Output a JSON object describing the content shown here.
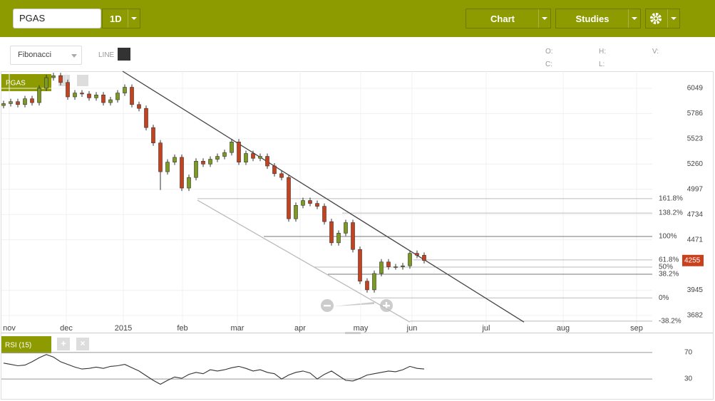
{
  "toolbar": {
    "symbol": "PGAS",
    "interval": "1D",
    "chart": "Chart",
    "studies": "Studies",
    "drawing_tool": "Fibonacci",
    "line_label": "LINE",
    "ohlc_labels": [
      "O:",
      "H:",
      "V:",
      "C:",
      "L:"
    ]
  },
  "chart_data": [
    {
      "type": "candlestick",
      "name": "PGAS",
      "up_color": "#7b9a1e",
      "down_color": "#c8401c",
      "x": [
        0,
        1,
        2,
        3,
        4,
        5,
        6,
        7,
        8,
        9,
        10,
        11,
        12,
        13,
        14,
        15,
        16,
        17,
        18,
        19,
        20,
        21,
        22,
        23,
        24,
        25,
        26,
        27,
        28,
        29,
        30,
        31,
        32,
        33,
        34,
        35,
        36,
        37,
        38,
        39,
        40,
        41,
        42,
        43,
        44,
        45,
        46,
        47,
        48,
        49,
        50,
        51,
        52,
        53,
        54,
        55,
        56,
        57,
        58,
        59
      ],
      "open": [
        5870,
        5890,
        5910,
        5880,
        5940,
        5900,
        6050,
        6160,
        6180,
        6110,
        5960,
        6000,
        5990,
        5950,
        5980,
        5900,
        5930,
        6000,
        6060,
        5880,
        5840,
        5640,
        5480,
        5180,
        5280,
        5330,
        5010,
        5120,
        5290,
        5260,
        5310,
        5340,
        5380,
        5490,
        5280,
        5370,
        5320,
        5340,
        5240,
        5160,
        5120,
        4690,
        4830,
        4880,
        4850,
        4820,
        4660,
        4440,
        4540,
        4650,
        4370,
        4040,
        3950,
        4120,
        4240,
        4190,
        4190,
        4200,
        4330,
        4310
      ],
      "high": [
        5920,
        5940,
        5940,
        5970,
        5970,
        6080,
        6190,
        6210,
        6210,
        6140,
        6030,
        6030,
        6020,
        6010,
        6010,
        5960,
        6030,
        6090,
        6090,
        5910,
        5870,
        5670,
        5510,
        5310,
        5360,
        5360,
        5150,
        5320,
        5320,
        5340,
        5370,
        5410,
        5520,
        5520,
        5400,
        5400,
        5370,
        5370,
        5270,
        5190,
        5150,
        4860,
        4910,
        4910,
        4880,
        4850,
        4690,
        4570,
        4680,
        4680,
        4400,
        4070,
        4150,
        4270,
        4270,
        4220,
        4230,
        4360,
        4360,
        4340
      ],
      "low": [
        5840,
        5860,
        5850,
        5850,
        5870,
        5870,
        6020,
        6130,
        6080,
        5930,
        5930,
        5960,
        5920,
        5920,
        5870,
        5870,
        5900,
        5970,
        5850,
        5810,
        5610,
        5450,
        4990,
        5150,
        5250,
        4980,
        4980,
        5090,
        5230,
        5230,
        5280,
        5310,
        5350,
        5250,
        5250,
        5290,
        5290,
        5210,
        5130,
        5090,
        4660,
        4660,
        4800,
        4820,
        4790,
        4630,
        4410,
        4410,
        4510,
        4340,
        4010,
        3920,
        3920,
        4090,
        4160,
        4160,
        4160,
        4170,
        4280,
        4225
      ],
      "close": [
        5890,
        5910,
        5880,
        5940,
        5900,
        6050,
        6160,
        6180,
        6110,
        5960,
        6000,
        5990,
        5950,
        5980,
        5900,
        5930,
        6000,
        6060,
        5880,
        5840,
        5640,
        5480,
        5180,
        5280,
        5330,
        5010,
        5120,
        5290,
        5260,
        5310,
        5340,
        5380,
        5490,
        5280,
        5370,
        5320,
        5340,
        5240,
        5160,
        5120,
        4690,
        4830,
        4880,
        4850,
        4820,
        4660,
        4440,
        4540,
        4650,
        4370,
        4040,
        3950,
        4120,
        4240,
        4190,
        4190,
        4200,
        4330,
        4310,
        4255
      ],
      "xlim": [
        -0.3,
        91
      ],
      "xticks": [
        {
          "value": 0.8,
          "label": "nov"
        },
        {
          "value": 8.8,
          "label": "dec"
        },
        {
          "value": 16.8,
          "label": "2015"
        },
        {
          "value": 25.1,
          "label": "feb"
        },
        {
          "value": 32.8,
          "label": "mar"
        },
        {
          "value": 41.6,
          "label": "apr"
        },
        {
          "value": 50.1,
          "label": "may"
        },
        {
          "value": 57.3,
          "label": "jun"
        },
        {
          "value": 67.7,
          "label": "jul"
        },
        {
          "value": 78.5,
          "label": "aug"
        },
        {
          "value": 88.8,
          "label": "sep"
        }
      ],
      "ylim": [
        3504,
        6227
      ],
      "yticks": [
        6049,
        5786,
        5523,
        5260,
        4997,
        4734,
        4471,
        3945,
        3682
      ],
      "grid": true,
      "trendlines": [
        {
          "x": [
            16.7,
            73
          ],
          "y": [
            6227,
            3614
          ],
          "color": "#444"
        },
        {
          "x": [
            27.2,
            57
          ],
          "y": [
            4884,
            3614
          ],
          "color": "#bbb"
        }
      ],
      "fibonacci": [
        {
          "label": "161.8%",
          "value": 4900,
          "start": 27.2
        },
        {
          "label": "138.2%",
          "value": 4750,
          "start": 47.5
        },
        {
          "label": "100%",
          "value": 4506,
          "start": 36.5
        },
        {
          "label": "61.8%",
          "value": 4262,
          "start": 57.5
        },
        {
          "label": "50%",
          "value": 4187,
          "start": 43.5
        },
        {
          "label": "38.2%",
          "value": 4112,
          "start": 45.5
        },
        {
          "label": "0%",
          "value": 3866,
          "start": 51.5
        },
        {
          "label": "-38.2%",
          "value": 3624,
          "start": 57
        }
      ]
    },
    {
      "type": "line",
      "name": "RSI (15)",
      "color": "#333",
      "x": [
        0,
        1,
        2,
        3,
        4,
        5,
        6,
        7,
        8,
        9,
        10,
        11,
        12,
        13,
        14,
        15,
        16,
        17,
        18,
        19,
        20,
        21,
        22,
        23,
        24,
        25,
        26,
        27,
        28,
        29,
        30,
        31,
        32,
        33,
        34,
        35,
        36,
        37,
        38,
        39,
        40,
        41,
        42,
        43,
        44,
        45,
        46,
        47,
        48,
        49,
        50,
        51,
        52,
        53,
        54,
        55,
        56,
        57,
        58,
        59
      ],
      "values": [
        54,
        52,
        50,
        51,
        56,
        62,
        67,
        63,
        56,
        52,
        48,
        45,
        46,
        48,
        46,
        49,
        50,
        52,
        47,
        42,
        35,
        28,
        22,
        28,
        33,
        31,
        37,
        40,
        38,
        44,
        42,
        44,
        47,
        49,
        46,
        42,
        44,
        40,
        38,
        30,
        36,
        40,
        42,
        39,
        30,
        37,
        42,
        35,
        28,
        27,
        31,
        36,
        38,
        40,
        42,
        41,
        44,
        49,
        46,
        45
      ],
      "xlim": [
        -0.3,
        91
      ],
      "ylim": [
        0,
        100
      ],
      "yticks": [
        70,
        30
      ]
    }
  ]
}
